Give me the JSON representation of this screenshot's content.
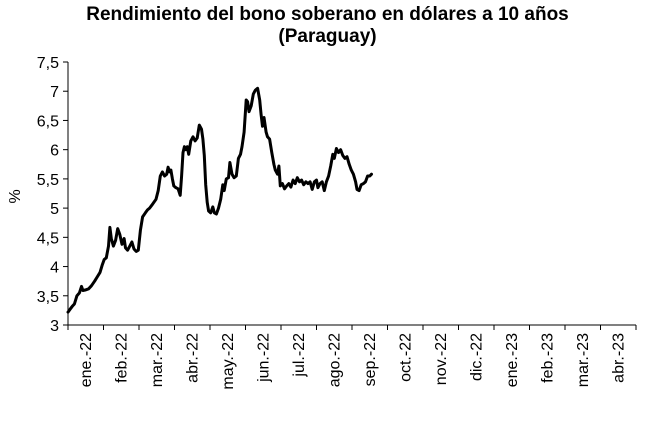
{
  "chart_data": {
    "type": "line",
    "title_line1": "Rendimiento del bono soberano en dólares a 10 años",
    "title_line2": "(Paraguay)",
    "ylabel": "%",
    "xlabel": "",
    "ylim": [
      3,
      7.5
    ],
    "yticks": [
      "3",
      "3,5",
      "4",
      "4,5",
      "5",
      "5,5",
      "6",
      "6,5",
      "7",
      "7,5"
    ],
    "x_categories": [
      "ene.-22",
      "feb.-22",
      "mar.-22",
      "abr.-22",
      "may.-22",
      "jun.-22",
      "jul.-22",
      "ago.-22",
      "sep.-22",
      "oct.-22",
      "nov.-22",
      "dic.-22",
      "ene.-23",
      "feb.-23",
      "mar.-23",
      "abr.-23"
    ],
    "grid": false,
    "legend": "none",
    "series": [
      {
        "color": "#000000",
        "points": [
          [
            0.0,
            3.22
          ],
          [
            0.06,
            3.27
          ],
          [
            0.12,
            3.32
          ],
          [
            0.18,
            3.36
          ],
          [
            0.25,
            3.5
          ],
          [
            0.32,
            3.55
          ],
          [
            0.38,
            3.66
          ],
          [
            0.42,
            3.59
          ],
          [
            0.5,
            3.6
          ],
          [
            0.58,
            3.62
          ],
          [
            0.66,
            3.67
          ],
          [
            0.75,
            3.75
          ],
          [
            0.82,
            3.82
          ],
          [
            0.9,
            3.9
          ],
          [
            0.96,
            4.02
          ],
          [
            1.02,
            4.12
          ],
          [
            1.08,
            4.15
          ],
          [
            1.14,
            4.35
          ],
          [
            1.18,
            4.67
          ],
          [
            1.22,
            4.48
          ],
          [
            1.28,
            4.35
          ],
          [
            1.34,
            4.45
          ],
          [
            1.4,
            4.65
          ],
          [
            1.46,
            4.55
          ],
          [
            1.52,
            4.38
          ],
          [
            1.58,
            4.48
          ],
          [
            1.62,
            4.32
          ],
          [
            1.68,
            4.28
          ],
          [
            1.74,
            4.35
          ],
          [
            1.8,
            4.42
          ],
          [
            1.86,
            4.3
          ],
          [
            1.92,
            4.26
          ],
          [
            1.98,
            4.28
          ],
          [
            2.04,
            4.62
          ],
          [
            2.1,
            4.85
          ],
          [
            2.18,
            4.92
          ],
          [
            2.24,
            4.97
          ],
          [
            2.3,
            5.0
          ],
          [
            2.36,
            5.05
          ],
          [
            2.42,
            5.1
          ],
          [
            2.48,
            5.15
          ],
          [
            2.54,
            5.3
          ],
          [
            2.6,
            5.55
          ],
          [
            2.66,
            5.62
          ],
          [
            2.72,
            5.55
          ],
          [
            2.78,
            5.58
          ],
          [
            2.82,
            5.7
          ],
          [
            2.86,
            5.62
          ],
          [
            2.9,
            5.65
          ],
          [
            2.94,
            5.5
          ],
          [
            2.98,
            5.38
          ],
          [
            3.04,
            5.35
          ],
          [
            3.1,
            5.33
          ],
          [
            3.16,
            5.22
          ],
          [
            3.2,
            5.55
          ],
          [
            3.24,
            5.95
          ],
          [
            3.28,
            6.05
          ],
          [
            3.32,
            6.0
          ],
          [
            3.36,
            6.05
          ],
          [
            3.4,
            5.92
          ],
          [
            3.46,
            6.15
          ],
          [
            3.52,
            6.22
          ],
          [
            3.58,
            6.15
          ],
          [
            3.64,
            6.2
          ],
          [
            3.7,
            6.42
          ],
          [
            3.76,
            6.35
          ],
          [
            3.8,
            6.18
          ],
          [
            3.84,
            5.9
          ],
          [
            3.88,
            5.4
          ],
          [
            3.92,
            5.1
          ],
          [
            3.96,
            4.95
          ],
          [
            4.02,
            4.92
          ],
          [
            4.08,
            5.02
          ],
          [
            4.12,
            4.92
          ],
          [
            4.18,
            4.9
          ],
          [
            4.24,
            5.0
          ],
          [
            4.3,
            5.15
          ],
          [
            4.36,
            5.4
          ],
          [
            4.4,
            5.3
          ],
          [
            4.46,
            5.5
          ],
          [
            4.52,
            5.52
          ],
          [
            4.56,
            5.78
          ],
          [
            4.62,
            5.58
          ],
          [
            4.68,
            5.52
          ],
          [
            4.74,
            5.55
          ],
          [
            4.8,
            5.85
          ],
          [
            4.86,
            5.92
          ],
          [
            4.9,
            6.05
          ],
          [
            4.96,
            6.3
          ],
          [
            5.02,
            6.85
          ],
          [
            5.06,
            6.82
          ],
          [
            5.1,
            6.65
          ],
          [
            5.16,
            6.75
          ],
          [
            5.22,
            6.95
          ],
          [
            5.28,
            7.02
          ],
          [
            5.34,
            7.05
          ],
          [
            5.4,
            6.85
          ],
          [
            5.44,
            6.6
          ],
          [
            5.48,
            6.4
          ],
          [
            5.52,
            6.55
          ],
          [
            5.58,
            6.3
          ],
          [
            5.62,
            6.22
          ],
          [
            5.68,
            6.18
          ],
          [
            5.74,
            5.95
          ],
          [
            5.8,
            5.75
          ],
          [
            5.84,
            5.65
          ],
          [
            5.9,
            5.58
          ],
          [
            5.94,
            5.72
          ],
          [
            5.98,
            5.38
          ],
          [
            6.04,
            5.42
          ],
          [
            6.1,
            5.33
          ],
          [
            6.16,
            5.38
          ],
          [
            6.22,
            5.42
          ],
          [
            6.28,
            5.36
          ],
          [
            6.34,
            5.48
          ],
          [
            6.4,
            5.42
          ],
          [
            6.46,
            5.52
          ],
          [
            6.52,
            5.45
          ],
          [
            6.58,
            5.48
          ],
          [
            6.64,
            5.4
          ],
          [
            6.7,
            5.45
          ],
          [
            6.76,
            5.42
          ],
          [
            6.82,
            5.45
          ],
          [
            6.88,
            5.32
          ],
          [
            6.94,
            5.45
          ],
          [
            7.0,
            5.48
          ],
          [
            7.04,
            5.35
          ],
          [
            7.1,
            5.42
          ],
          [
            7.16,
            5.45
          ],
          [
            7.22,
            5.3
          ],
          [
            7.28,
            5.45
          ],
          [
            7.34,
            5.55
          ],
          [
            7.4,
            5.72
          ],
          [
            7.46,
            5.92
          ],
          [
            7.5,
            5.85
          ],
          [
            7.56,
            6.02
          ],
          [
            7.62,
            5.95
          ],
          [
            7.68,
            6.0
          ],
          [
            7.74,
            5.9
          ],
          [
            7.8,
            5.85
          ],
          [
            7.86,
            5.88
          ],
          [
            7.92,
            5.75
          ],
          [
            7.98,
            5.65
          ],
          [
            8.04,
            5.58
          ],
          [
            8.1,
            5.45
          ],
          [
            8.14,
            5.32
          ],
          [
            8.2,
            5.3
          ],
          [
            8.26,
            5.4
          ],
          [
            8.32,
            5.42
          ],
          [
            8.38,
            5.45
          ],
          [
            8.44,
            5.55
          ],
          [
            8.5,
            5.55
          ],
          [
            8.55,
            5.58
          ]
        ]
      }
    ]
  }
}
